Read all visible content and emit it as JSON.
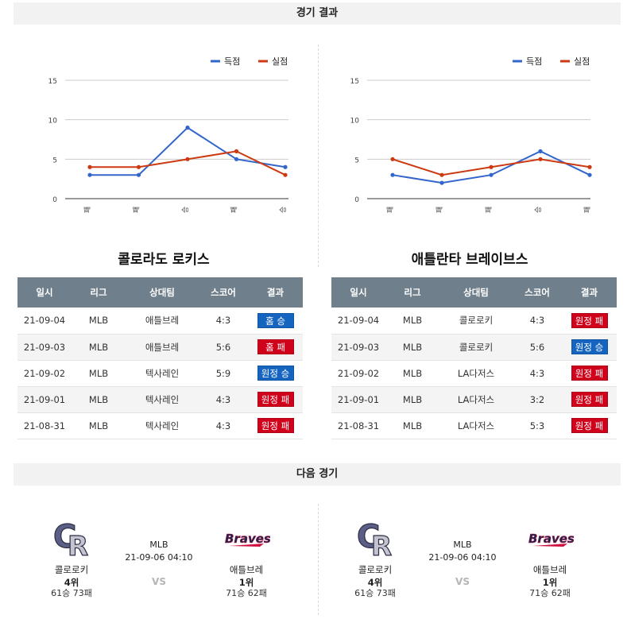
{
  "results_header": "경기 결과",
  "next_header": "다음 경기",
  "legend": {
    "scored": "득점",
    "allowed": "실점"
  },
  "colors": {
    "scored": "#3366cc",
    "allowed": "#cc3a12",
    "win_badge": "#1565c0",
    "loss_badge": "#d0021b",
    "header_row": "#6f7f8b"
  },
  "chart_data": [
    {
      "type": "line",
      "categories": [
        "패",
        "패",
        "승",
        "패",
        "승"
      ],
      "series": [
        {
          "name": "득점",
          "values": [
            3,
            3,
            9,
            5,
            4
          ]
        },
        {
          "name": "실점",
          "values": [
            4,
            4,
            5,
            6,
            3
          ]
        }
      ],
      "yticks": [
        0,
        5,
        10,
        15
      ],
      "ylim": [
        0,
        15
      ],
      "grid": true,
      "legend": "top-right"
    },
    {
      "type": "line",
      "categories": [
        "패",
        "패",
        "패",
        "승",
        "패"
      ],
      "series": [
        {
          "name": "득점",
          "values": [
            3,
            2,
            3,
            6,
            3
          ]
        },
        {
          "name": "실점",
          "values": [
            5,
            3,
            4,
            5,
            4
          ]
        }
      ],
      "yticks": [
        0,
        5,
        10,
        15
      ],
      "ylim": [
        0,
        15
      ],
      "grid": true,
      "legend": "top-right"
    }
  ],
  "table_headers": [
    "일시",
    "리그",
    "상대팀",
    "스코어",
    "결과"
  ],
  "teams": [
    {
      "name": "콜로라도 로키스",
      "rows": [
        {
          "date": "21-09-04",
          "league": "MLB",
          "opponent": "애틀브레",
          "score": "4:3",
          "result": "홈 승",
          "win": true
        },
        {
          "date": "21-09-03",
          "league": "MLB",
          "opponent": "애틀브레",
          "score": "5:6",
          "result": "홈 패",
          "win": false
        },
        {
          "date": "21-09-02",
          "league": "MLB",
          "opponent": "텍사레인",
          "score": "5:9",
          "result": "원정 승",
          "win": true
        },
        {
          "date": "21-09-01",
          "league": "MLB",
          "opponent": "텍사레인",
          "score": "4:3",
          "result": "원정 패",
          "win": false
        },
        {
          "date": "21-08-31",
          "league": "MLB",
          "opponent": "텍사레인",
          "score": "4:3",
          "result": "원정 패",
          "win": false
        }
      ]
    },
    {
      "name": "애틀란타 브레이브스",
      "rows": [
        {
          "date": "21-09-04",
          "league": "MLB",
          "opponent": "콜로로키",
          "score": "4:3",
          "result": "원정 패",
          "win": false
        },
        {
          "date": "21-09-03",
          "league": "MLB",
          "opponent": "콜로로키",
          "score": "5:6",
          "result": "원정 승",
          "win": true
        },
        {
          "date": "21-09-02",
          "league": "MLB",
          "opponent": "LA다저스",
          "score": "4:3",
          "result": "원정 패",
          "win": false
        },
        {
          "date": "21-09-01",
          "league": "MLB",
          "opponent": "LA다저스",
          "score": "3:2",
          "result": "원정 패",
          "win": false
        },
        {
          "date": "21-08-31",
          "league": "MLB",
          "opponent": "LA다저스",
          "score": "5:3",
          "result": "원정 패",
          "win": false
        }
      ]
    }
  ],
  "next_games": [
    {
      "league": "MLB",
      "datetime": "21-09-06 04:10",
      "vs": "VS",
      "home": {
        "name": "콜로로키",
        "rank": "4위",
        "record": "61승 73패",
        "logo_icon": "rockies-logo-icon"
      },
      "away": {
        "name": "애틀브레",
        "rank": "1위",
        "record": "71승 62패",
        "logo_icon": "braves-logo-icon",
        "logo_text": "Braves"
      }
    },
    {
      "league": "MLB",
      "datetime": "21-09-06 04:10",
      "vs": "VS",
      "home": {
        "name": "콜로로키",
        "rank": "4위",
        "record": "61승 73패",
        "logo_icon": "rockies-logo-icon"
      },
      "away": {
        "name": "애틀브레",
        "rank": "1위",
        "record": "71승 62패",
        "logo_icon": "braves-logo-icon",
        "logo_text": "Braves"
      }
    }
  ]
}
